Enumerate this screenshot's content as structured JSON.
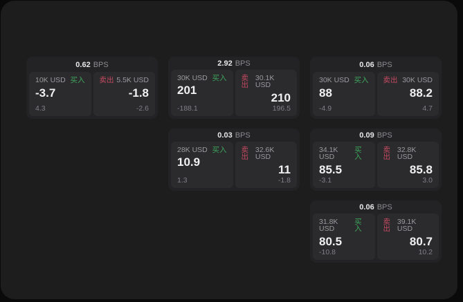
{
  "labels": {
    "bps": "BPS",
    "buy": "买入",
    "sell": "卖出"
  },
  "colors": {
    "window_bg": "#1d1d1e",
    "card_bg": "#232325",
    "tile_bg": "#2b2b2d",
    "buy_green": "#3ea65c",
    "sell_red": "#c44a60"
  },
  "cards": [
    {
      "bps": "0.62",
      "buy": {
        "size": "10K USD",
        "price": "-3.7",
        "sub": "4.3"
      },
      "sell": {
        "size": "5.5K USD",
        "price": "-1.8",
        "sub": "-2.6"
      }
    },
    {
      "bps": "2.92",
      "buy": {
        "size": "30K USD",
        "price": "201",
        "sub": "-188.1"
      },
      "sell": {
        "size": "30.1K USD",
        "price": "210",
        "sub": "196.5"
      }
    },
    {
      "bps": "0.06",
      "buy": {
        "size": "30K USD",
        "price": "88",
        "sub": "-4.9"
      },
      "sell": {
        "size": "30K USD",
        "price": "88.2",
        "sub": "4.7"
      }
    },
    {
      "bps": "0.03",
      "buy": {
        "size": "28K USD",
        "price": "10.9",
        "sub": "1.3"
      },
      "sell": {
        "size": "32.6K USD",
        "price": "11",
        "sub": "-1.8"
      }
    },
    {
      "bps": "0.09",
      "buy": {
        "size": "34.1K USD",
        "price": "85.5",
        "sub": "-3.1"
      },
      "sell": {
        "size": "32.8K USD",
        "price": "85.8",
        "sub": "3.0"
      }
    },
    {
      "bps": "0.06",
      "buy": {
        "size": "31.8K USD",
        "price": "80.5",
        "sub": "-10.8"
      },
      "sell": {
        "size": "39.1K USD",
        "price": "80.7",
        "sub": "10.2"
      }
    }
  ]
}
